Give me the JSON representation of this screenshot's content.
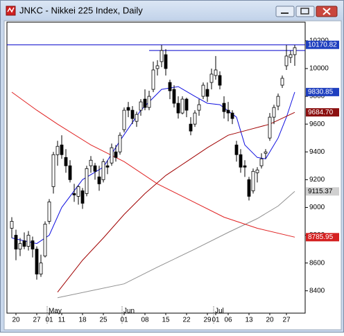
{
  "chart_data": {
    "type": "candlestick",
    "title": "JNKC - Nikkei 225 Index, Daily",
    "categories": [
      null,
      "20",
      null,
      null,
      null,
      null,
      "27",
      null,
      null,
      "01",
      null,
      null,
      "11",
      null,
      null,
      null,
      null,
      "18",
      null,
      null,
      null,
      null,
      "25",
      null,
      null,
      null,
      null,
      "01",
      null,
      null,
      null,
      null,
      "08",
      null,
      null,
      null,
      null,
      "15",
      null,
      null,
      null,
      null,
      "22",
      null,
      null,
      null,
      null,
      "29",
      null,
      "01",
      null,
      null,
      "06",
      null,
      null,
      null,
      null,
      "13",
      null,
      null,
      null,
      null,
      "20",
      null,
      null,
      null,
      "27",
      null,
      null
    ],
    "months": [
      null,
      null,
      null,
      null,
      null,
      null,
      null,
      null,
      null,
      "May",
      null,
      null,
      null,
      null,
      null,
      null,
      null,
      null,
      null,
      null,
      null,
      null,
      null,
      null,
      null,
      null,
      null,
      "Jun",
      null,
      null,
      null,
      null,
      null,
      null,
      null,
      null,
      null,
      null,
      null,
      null,
      null,
      null,
      null,
      null,
      null,
      null,
      null,
      null,
      null,
      "Jul",
      null,
      null,
      null,
      null,
      null,
      null,
      null,
      null,
      null,
      null,
      null,
      null,
      null,
      null,
      null,
      null,
      null,
      null,
      null
    ],
    "open": [
      8850,
      8800,
      8700,
      8760,
      8720,
      8760,
      8700,
      8520,
      8650,
      8900,
      9150,
      9380,
      9450,
      9360,
      9300,
      9100,
      9080,
      9120,
      9100,
      9300,
      9300,
      9220,
      9200,
      9300,
      9320,
      9400,
      9400,
      9560,
      9720,
      9700,
      9620,
      9700,
      9780,
      9720,
      9850,
      10000,
      10050,
      10100,
      9900,
      9850,
      9750,
      9680,
      9780,
      9600,
      9600,
      9700,
      9800,
      9850,
      9900,
      9950,
      9950,
      9750,
      9700,
      9680,
      9450,
      9380,
      9300,
      9200,
      9120,
      9250,
      9300,
      9390,
      9500,
      9650,
      9730,
      9880,
      10020,
      10080,
      10100
    ],
    "high": [
      8930,
      8840,
      8780,
      8820,
      8830,
      8790,
      8720,
      8660,
      8900,
      9060,
      9400,
      9480,
      9520,
      9420,
      9340,
      9170,
      9160,
      9140,
      9300,
      9370,
      9320,
      9300,
      9350,
      9340,
      9460,
      9450,
      9540,
      9720,
      9760,
      9730,
      9690,
      9780,
      9850,
      9840,
      10050,
      10060,
      10170,
      10140,
      9920,
      9880,
      9800,
      9800,
      9790,
      9650,
      9700,
      9780,
      9900,
      9900,
      10000,
      10090,
      9980,
      9800,
      9760,
      9700,
      9480,
      9420,
      9340,
      9220,
      9280,
      9290,
      9390,
      9420,
      9680,
      9740,
      9820,
      9950,
      10170,
      10130,
      10170
    ],
    "low": [
      8780,
      8620,
      8650,
      8700,
      8690,
      8640,
      8480,
      8500,
      8640,
      8880,
      9100,
      9300,
      9350,
      9250,
      9180,
      9040,
      9020,
      8990,
      9080,
      9250,
      9200,
      9120,
      9180,
      9240,
      9300,
      9330,
      9380,
      9540,
      9650,
      9600,
      9580,
      9660,
      9700,
      9700,
      9830,
      9950,
      10010,
      9950,
      9780,
      9720,
      9640,
      9670,
      9650,
      9520,
      9580,
      9660,
      9780,
      9760,
      9850,
      9920,
      9850,
      9640,
      9620,
      9600,
      9330,
      9250,
      9220,
      9050,
      9100,
      9180,
      9280,
      9350,
      9480,
      9600,
      9700,
      9860,
      9990,
      10040,
      10020
    ],
    "close": [
      8900,
      8700,
      8740,
      8720,
      8800,
      8700,
      8520,
      8600,
      8880,
      9040,
      9380,
      9440,
      9380,
      9300,
      9200,
      9090,
      9150,
      9030,
      9280,
      9340,
      9260,
      9170,
      9330,
      9290,
      9430,
      9360,
      9520,
      9700,
      9700,
      9640,
      9670,
      9760,
      9720,
      9800,
      9990,
      10020,
      10130,
      10000,
      9840,
      9750,
      9680,
      9780,
      9700,
      9550,
      9680,
      9740,
      9880,
      9800,
      9960,
      9990,
      9880,
      9690,
      9680,
      9640,
      9380,
      9290,
      9290,
      9080,
      9260,
      9270,
      9350,
      9400,
      9650,
      9720,
      9800,
      9930,
      10090,
      10100,
      10150
    ],
    "up_color": "#ffffff",
    "down_color": "#000000",
    "candle_outline": "#000000",
    "lines": [
      {
        "color": "#1010e0",
        "x": [
          0,
          3,
          6,
          9,
          12,
          17,
          22,
          26,
          31,
          36,
          40,
          44,
          47,
          50,
          54,
          56,
          59,
          61,
          64,
          66,
          68
        ],
        "values": [
          8780,
          8760,
          8740,
          8800,
          9000,
          9200,
          9290,
          9480,
          9700,
          9850,
          9870,
          9800,
          9750,
          9740,
          9650,
          9450,
          9360,
          9350,
          9500,
          9650,
          9830.85
        ],
        "end_label": "9830.85",
        "label_bg": "#1f3fbf",
        "label_fg": "#ffffff"
      },
      {
        "color": "#a00000",
        "x": [
          11,
          17,
          22,
          27,
          32,
          37,
          42,
          47,
          52,
          57,
          62,
          68
        ],
        "values": [
          8390,
          8620,
          8780,
          8950,
          9100,
          9230,
          9330,
          9430,
          9520,
          9560,
          9600,
          9684.7
        ],
        "end_label": "9684.70",
        "label_bg": "#8b1010",
        "label_fg": "#ffffff"
      },
      {
        "color": "#909090",
        "x": [
          11,
          19,
          27,
          35,
          44,
          52,
          59,
          64,
          68
        ],
        "values": [
          8350,
          8400,
          8450,
          8570,
          8700,
          8820,
          8920,
          9010,
          9115.37
        ],
        "end_label": "9115.37",
        "label_bg": "#d0d0d0",
        "label_fg": "#000000"
      },
      {
        "color": "#e02020",
        "x": [
          0,
          6,
          11,
          19,
          27,
          35,
          43,
          51,
          59,
          68
        ],
        "values": [
          9830,
          9700,
          9600,
          9450,
          9330,
          9170,
          9050,
          8930,
          8850,
          8785.95
        ],
        "end_label": "8785.95",
        "label_bg": "#d42020",
        "label_fg": "#ffffff"
      }
    ],
    "hlines": [
      {
        "value": 10170.82,
        "from": 0,
        "color": "#0000cc",
        "label": "10170.82",
        "label_bg": "#1f3fbf",
        "label_fg": "#ffffff"
      },
      {
        "value": 10130,
        "from": 33,
        "color": "#0000cc"
      }
    ],
    "ylim": [
      8239,
      10334
    ],
    "yticks": [
      8400,
      8600,
      8800,
      9000,
      9200,
      9400,
      9600,
      9800,
      10000,
      10200
    ]
  }
}
